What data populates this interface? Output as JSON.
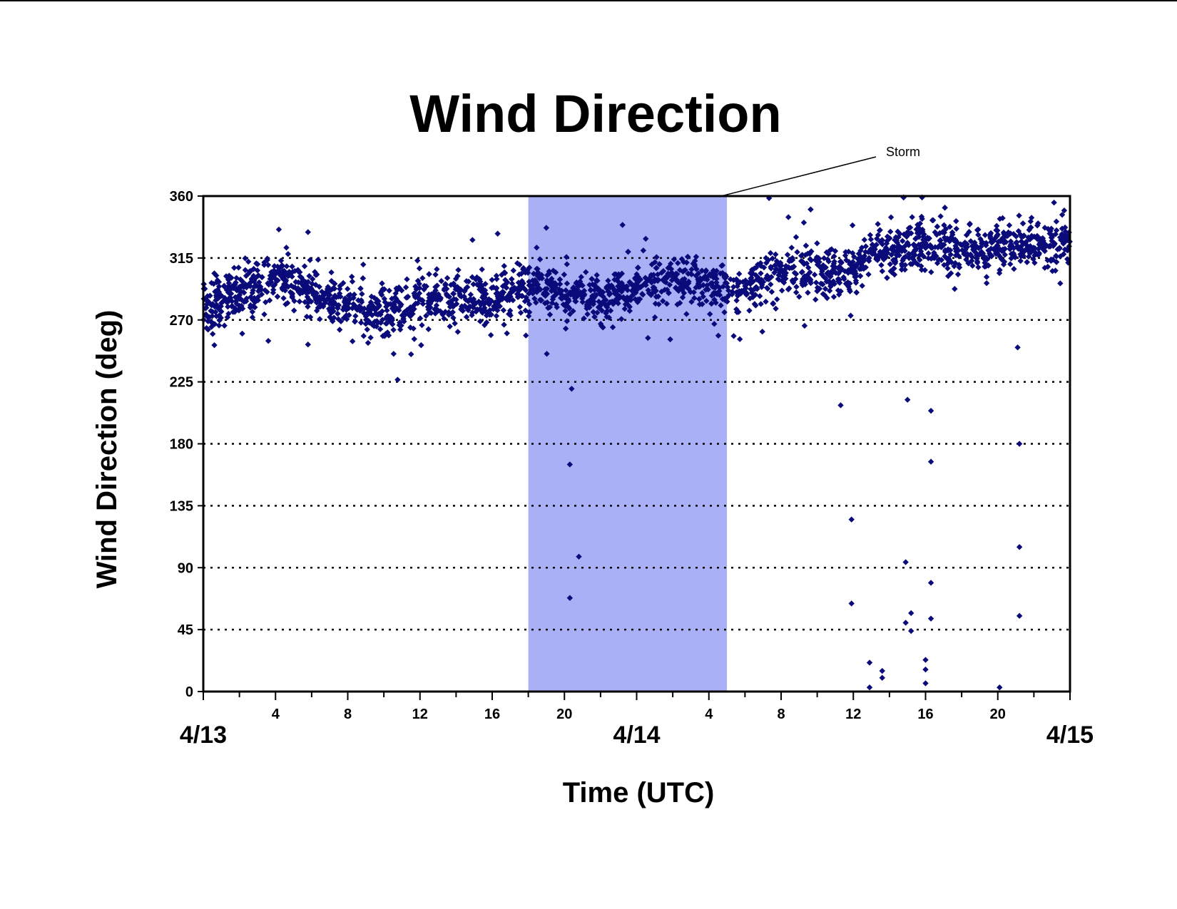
{
  "chart_data": {
    "type": "scatter",
    "title": "Wind Direction",
    "xlabel": "Time (UTC)",
    "ylabel": "Wind Direction (deg)",
    "xlim": [
      0,
      48
    ],
    "ylim": [
      0,
      360
    ],
    "y_ticks": [
      0,
      45,
      90,
      135,
      180,
      225,
      270,
      315,
      360
    ],
    "x_tick_labels": [
      {
        "hour": 4,
        "label": "4"
      },
      {
        "hour": 8,
        "label": "8"
      },
      {
        "hour": 12,
        "label": "12"
      },
      {
        "hour": 16,
        "label": "16"
      },
      {
        "hour": 20,
        "label": "20"
      },
      {
        "hour": 28,
        "label": "4"
      },
      {
        "hour": 32,
        "label": "8"
      },
      {
        "hour": 36,
        "label": "12"
      },
      {
        "hour": 40,
        "label": "16"
      },
      {
        "hour": 44,
        "label": "20"
      }
    ],
    "date_labels": [
      {
        "hour": 0,
        "label": "4/13"
      },
      {
        "hour": 24,
        "label": "4/14"
      },
      {
        "hour": 48,
        "label": "4/15"
      }
    ],
    "grid": "horizontal dotted at 45-degree intervals",
    "shaded_region": {
      "start_hour": 18,
      "end_hour": 29,
      "color": "#aab0f5",
      "annotation": "Storm"
    },
    "marker_color": "#0a0a7a",
    "series": [
      {
        "trend": [
          [
            0,
            280
          ],
          [
            2,
            290
          ],
          [
            4,
            300
          ],
          [
            6,
            290
          ],
          [
            8,
            280
          ],
          [
            10,
            275
          ],
          [
            12,
            285
          ],
          [
            14,
            285
          ],
          [
            16,
            283
          ],
          [
            18,
            295
          ],
          [
            20,
            290
          ],
          [
            22,
            285
          ],
          [
            24,
            295
          ],
          [
            26,
            300
          ],
          [
            28,
            295
          ],
          [
            30,
            293
          ],
          [
            32,
            305
          ],
          [
            34,
            307
          ],
          [
            36,
            305
          ],
          [
            37,
            320
          ],
          [
            40,
            325
          ],
          [
            42,
            320
          ],
          [
            44,
            325
          ],
          [
            46,
            325
          ],
          [
            48,
            325
          ]
        ],
        "outliers": [
          [
            20.3,
            165
          ],
          [
            20.3,
            68
          ],
          [
            20.8,
            98
          ],
          [
            20.4,
            220
          ],
          [
            35.9,
            125
          ],
          [
            35.9,
            64
          ],
          [
            35.3,
            208
          ],
          [
            36.9,
            21
          ],
          [
            36.9,
            3
          ],
          [
            37.6,
            15
          ],
          [
            37.6,
            10
          ],
          [
            38.9,
            94
          ],
          [
            38.9,
            50
          ],
          [
            39.2,
            44
          ],
          [
            39.2,
            57
          ],
          [
            40.0,
            23
          ],
          [
            40.0,
            16
          ],
          [
            40.0,
            6
          ],
          [
            40.3,
            204
          ],
          [
            40.3,
            167
          ],
          [
            40.3,
            79
          ],
          [
            40.3,
            53
          ],
          [
            44.1,
            3
          ],
          [
            45.2,
            180
          ],
          [
            45.2,
            105
          ],
          [
            45.2,
            55
          ],
          [
            45.1,
            250
          ],
          [
            39.0,
            212
          ]
        ]
      }
    ]
  }
}
